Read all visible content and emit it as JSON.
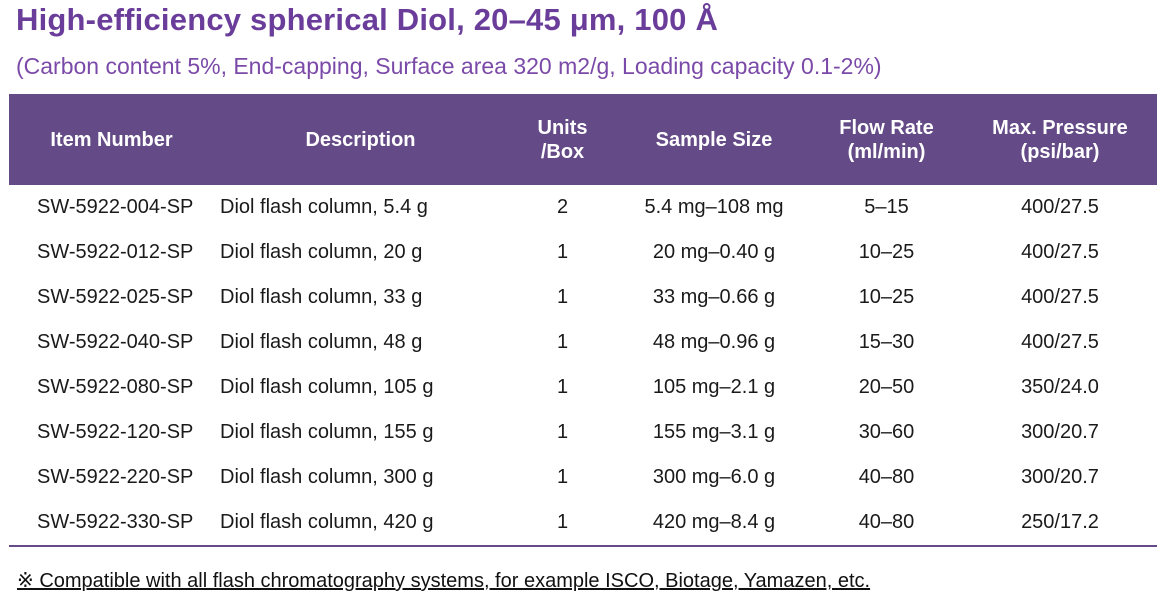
{
  "title": "High-efficiency spherical Diol, 20–45 μm, 100 Å",
  "subtitle": "(Carbon content 5%, End-capping, Surface area 320 m2/g, Loading capacity 0.1-2%)",
  "colors": {
    "accent": "#6a3d9a",
    "header_bg": "#644a86",
    "header_text": "#ffffff"
  },
  "table": {
    "headers": [
      {
        "lines": [
          "Item Number"
        ]
      },
      {
        "lines": [
          "Description"
        ]
      },
      {
        "lines": [
          "Units",
          "/Box"
        ]
      },
      {
        "lines": [
          "Sample Size"
        ]
      },
      {
        "lines": [
          "Flow Rate",
          "(ml/min)"
        ]
      },
      {
        "lines": [
          "Max. Pressure",
          "(psi/bar)"
        ]
      }
    ],
    "rows": [
      [
        "SW-5922-004-SP",
        "Diol flash column, 5.4 g",
        "2",
        "5.4 mg–108 mg",
        "5–15",
        "400/27.5"
      ],
      [
        "SW-5922-012-SP",
        "Diol flash column, 20 g",
        "1",
        "20 mg–0.40 g",
        "10–25",
        "400/27.5"
      ],
      [
        "SW-5922-025-SP",
        "Diol flash column, 33 g",
        "1",
        "33 mg–0.66 g",
        "10–25",
        "400/27.5"
      ],
      [
        "SW-5922-040-SP",
        "Diol flash column, 48 g",
        "1",
        "48 mg–0.96 g",
        "15–30",
        "400/27.5"
      ],
      [
        "SW-5922-080-SP",
        "Diol flash column, 105 g",
        "1",
        "105 mg–2.1 g",
        "20–50",
        "350/24.0"
      ],
      [
        "SW-5922-120-SP",
        "Diol flash column, 155 g",
        "1",
        "155 mg–3.1 g",
        "30–60",
        "300/20.7"
      ],
      [
        "SW-5922-220-SP",
        "Diol flash column, 300 g",
        "1",
        "300 mg–6.0 g",
        "40–80",
        "300/20.7"
      ],
      [
        "SW-5922-330-SP",
        "Diol flash column, 420 g",
        "1",
        "420 mg–8.4 g",
        "40–80",
        "250/17.2"
      ]
    ]
  },
  "footnote": "※ Compatible with all flash chromatography systems, for example ISCO, Biotage, Yamazen, etc."
}
